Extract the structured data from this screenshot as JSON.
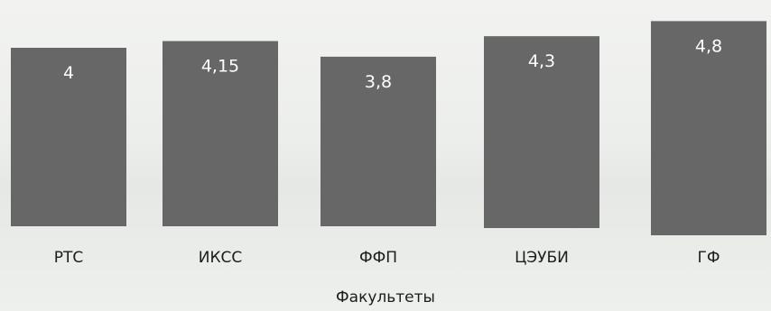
{
  "chart_data": {
    "type": "bar",
    "categories": [
      "РТС",
      "ИКСС",
      "ФФП",
      "ЦЭУБИ",
      "ГФ"
    ],
    "values": [
      4,
      4.15,
      3.8,
      4.3,
      4.8
    ],
    "value_labels": [
      "4",
      "4,15",
      "3,8",
      "4,3",
      "4,8"
    ],
    "xlabel": "Факультеты",
    "grid": false,
    "legend": "none",
    "bar_color": "#676767"
  }
}
